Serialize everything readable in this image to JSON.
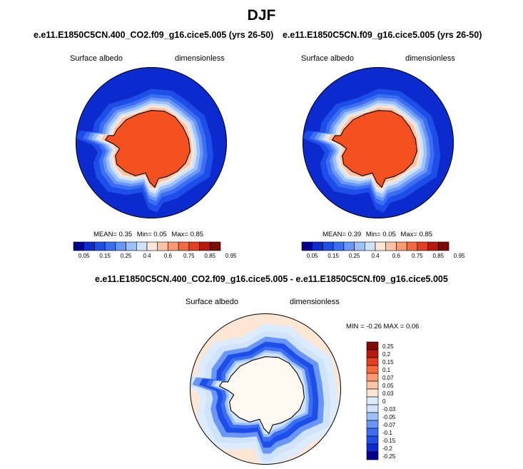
{
  "figure": {
    "title": "DJF"
  },
  "panels": {
    "left": {
      "title": "e.e11.E1850C5CN.400_CO2.f09_g16.cice5.005 (yrs 26-50)",
      "variable": "Surface albedo",
      "units": "dimensionless",
      "mean_label": "MEAN=",
      "mean_value": "0.35",
      "min_label": "Min=",
      "min_value": "0.05",
      "max_label": "Max=",
      "max_value": "0.85"
    },
    "right": {
      "title": "e.e11.E1850C5CN.f09_g16.cice5.005 (yrs 26-50)",
      "variable": "Surface albedo",
      "units": "dimensionless",
      "mean_label": "MEAN=",
      "mean_value": "0.39",
      "min_label": "Min=",
      "min_value": "0.05",
      "max_label": "Max=",
      "max_value": "0.85"
    },
    "diff": {
      "title": "e.e11.E1850C5CN.400_CO2.f09_g16.cice5.005 - e.e11.E1850C5CN.f09_g16.cice5.005",
      "variable": "Surface albedo",
      "units": "dimensionless",
      "minmax_text": "MIN =  -0.26 MAX =   0.06"
    }
  },
  "colors": {
    "abs_scale": [
      "#00008f",
      "#0b2bcf",
      "#1d4fe8",
      "#3b6ef2",
      "#6a97f7",
      "#9cc0fa",
      "#cfe3fc",
      "#fde6d3",
      "#fcc4a4",
      "#fb9a70",
      "#f26a3e",
      "#e04020",
      "#b5190c",
      "#7e0a04"
    ],
    "diff_scale": [
      "#00008f",
      "#0b2bcf",
      "#1d4fe8",
      "#3b6ef2",
      "#6a97f7",
      "#9cc0fa",
      "#cfe3fc",
      "#ddecfd",
      "#fde6d3",
      "#fcc4a4",
      "#fb9a70",
      "#f26a3e",
      "#e04020",
      "#b5190c",
      "#7e0a04"
    ],
    "land_ice": "#f5501f",
    "ocean": "#0b2bcf",
    "coast": "#000000"
  },
  "chart_data": [
    {
      "type": "heatmap",
      "name": "panel-left",
      "title": "e.e11.E1850C5CN.400_CO2.f09_g16.cice5.005 (yrs 26-50)",
      "projection": "south-polar-stereographic",
      "colorbar": {
        "orientation": "horizontal",
        "tick_labels": [
          "0.05",
          "0.15",
          "0.25",
          "0.4",
          "0.6",
          "0.75",
          "0.85",
          "0.95"
        ],
        "levels": [
          0.05,
          0.1,
          0.15,
          0.2,
          0.25,
          0.3,
          0.4,
          0.5,
          0.6,
          0.7,
          0.75,
          0.8,
          0.85,
          0.9,
          0.95
        ]
      },
      "stats": {
        "mean": 0.35,
        "min": 0.05,
        "max": 0.85
      }
    },
    {
      "type": "heatmap",
      "name": "panel-right",
      "title": "e.e11.E1850C5CN.f09_g16.cice5.005 (yrs 26-50)",
      "projection": "south-polar-stereographic",
      "colorbar": {
        "orientation": "horizontal",
        "tick_labels": [
          "0.05",
          "0.15",
          "0.25",
          "0.4",
          "0.6",
          "0.75",
          "0.85",
          "0.95"
        ],
        "levels": [
          0.05,
          0.1,
          0.15,
          0.2,
          0.25,
          0.3,
          0.4,
          0.5,
          0.6,
          0.7,
          0.75,
          0.8,
          0.85,
          0.9,
          0.95
        ]
      },
      "stats": {
        "mean": 0.39,
        "min": 0.05,
        "max": 0.85
      }
    },
    {
      "type": "heatmap",
      "name": "panel-diff",
      "title": "e.e11.E1850C5CN.400_CO2.f09_g16.cice5.005 - e.e11.E1850C5CN.f09_g16.cice5.005",
      "projection": "south-polar-stereographic",
      "colorbar": {
        "orientation": "vertical",
        "tick_labels": [
          "0.25",
          "0.2",
          "0.15",
          "0.1",
          "0.07",
          "0.05",
          "0.03",
          "0",
          "-0.03",
          "-0.05",
          "-0.07",
          "-0.1",
          "-0.15",
          "-0.2",
          "-0.25"
        ]
      },
      "stats": {
        "min": -0.26,
        "max": 0.06
      }
    }
  ]
}
